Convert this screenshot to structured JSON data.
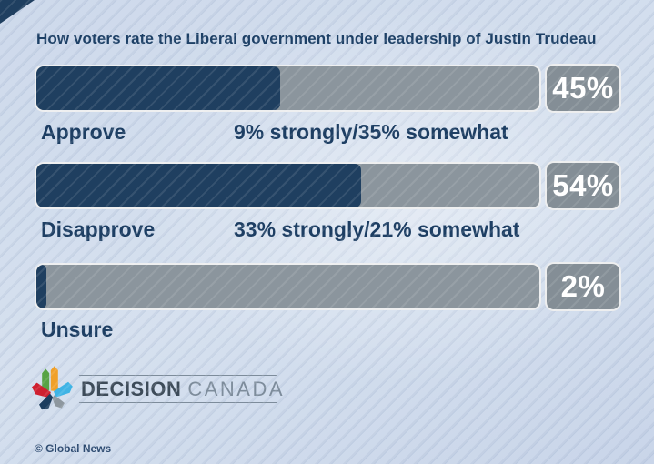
{
  "page": {
    "title": "How voters rate the Liberal government under leadership of Justin Trudeau",
    "copyright": "© Global News"
  },
  "chart_data": {
    "type": "bar",
    "orientation": "horizontal",
    "title": "How voters rate the Liberal government under leadership of Justin Trudeau",
    "categories": [
      "Approve",
      "Disapprove",
      "Unsure"
    ],
    "values": [
      45,
      54,
      2
    ],
    "value_labels": [
      "45%",
      "54%",
      "2%"
    ],
    "details": [
      "9% strongly/35% somewhat",
      "33% strongly/21% somewhat",
      ""
    ],
    "fill_pct": [
      48.5,
      64.6,
      2
    ],
    "xlim": [
      0,
      100
    ],
    "grid": false,
    "legend": false,
    "colors": {
      "bar_fill": "#1f3f60",
      "bar_track": "#8b959d",
      "value_box": "#848e96",
      "value_text": "#ffffff",
      "label_text": "#1d3e63",
      "background": "#cdd9eb"
    }
  },
  "logo": {
    "primary": "DECISION",
    "secondary": "CANADA",
    "leaf_colors": {
      "green": "#57a345",
      "orange": "#f0a029",
      "red": "#cf2030",
      "navy": "#1c3d5f",
      "light_blue": "#3fb4e5",
      "gray": "#8d979f"
    }
  }
}
